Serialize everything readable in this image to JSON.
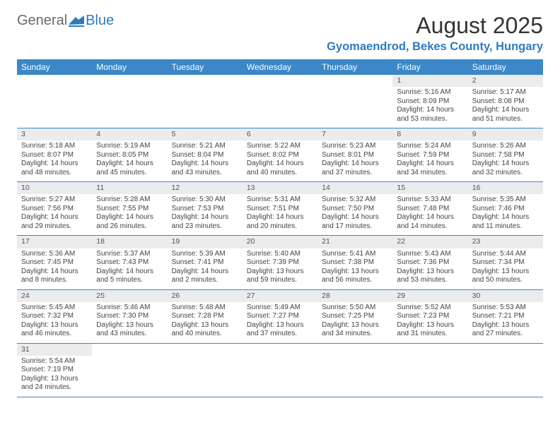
{
  "logo": {
    "text_a": "General",
    "text_b": "Blue"
  },
  "title": "August 2025",
  "location": "Gyomaendrod, Bekes County, Hungary",
  "colors": {
    "header_bg": "#3b87c8",
    "header_text": "#ffffff",
    "daynum_bg": "#ececec",
    "rule": "#3b87c8",
    "logo_blue": "#2f7bbf",
    "logo_gray": "#6a6a6a",
    "body_text": "#444444"
  },
  "typography": {
    "title_fontsize": 32,
    "location_fontsize": 16.5,
    "dayhead_fontsize": 12,
    "cell_fontsize": 10
  },
  "day_headers": [
    "Sunday",
    "Monday",
    "Tuesday",
    "Wednesday",
    "Thursday",
    "Friday",
    "Saturday"
  ],
  "weeks": [
    [
      null,
      null,
      null,
      null,
      null,
      {
        "n": "1",
        "sr": "Sunrise: 5:16 AM",
        "ss": "Sunset: 8:09 PM",
        "dl1": "Daylight: 14 hours",
        "dl2": "and 53 minutes."
      },
      {
        "n": "2",
        "sr": "Sunrise: 5:17 AM",
        "ss": "Sunset: 8:08 PM",
        "dl1": "Daylight: 14 hours",
        "dl2": "and 51 minutes."
      }
    ],
    [
      {
        "n": "3",
        "sr": "Sunrise: 5:18 AM",
        "ss": "Sunset: 8:07 PM",
        "dl1": "Daylight: 14 hours",
        "dl2": "and 48 minutes."
      },
      {
        "n": "4",
        "sr": "Sunrise: 5:19 AM",
        "ss": "Sunset: 8:05 PM",
        "dl1": "Daylight: 14 hours",
        "dl2": "and 45 minutes."
      },
      {
        "n": "5",
        "sr": "Sunrise: 5:21 AM",
        "ss": "Sunset: 8:04 PM",
        "dl1": "Daylight: 14 hours",
        "dl2": "and 43 minutes."
      },
      {
        "n": "6",
        "sr": "Sunrise: 5:22 AM",
        "ss": "Sunset: 8:02 PM",
        "dl1": "Daylight: 14 hours",
        "dl2": "and 40 minutes."
      },
      {
        "n": "7",
        "sr": "Sunrise: 5:23 AM",
        "ss": "Sunset: 8:01 PM",
        "dl1": "Daylight: 14 hours",
        "dl2": "and 37 minutes."
      },
      {
        "n": "8",
        "sr": "Sunrise: 5:24 AM",
        "ss": "Sunset: 7:59 PM",
        "dl1": "Daylight: 14 hours",
        "dl2": "and 34 minutes."
      },
      {
        "n": "9",
        "sr": "Sunrise: 5:26 AM",
        "ss": "Sunset: 7:58 PM",
        "dl1": "Daylight: 14 hours",
        "dl2": "and 32 minutes."
      }
    ],
    [
      {
        "n": "10",
        "sr": "Sunrise: 5:27 AM",
        "ss": "Sunset: 7:56 PM",
        "dl1": "Daylight: 14 hours",
        "dl2": "and 29 minutes."
      },
      {
        "n": "11",
        "sr": "Sunrise: 5:28 AM",
        "ss": "Sunset: 7:55 PM",
        "dl1": "Daylight: 14 hours",
        "dl2": "and 26 minutes."
      },
      {
        "n": "12",
        "sr": "Sunrise: 5:30 AM",
        "ss": "Sunset: 7:53 PM",
        "dl1": "Daylight: 14 hours",
        "dl2": "and 23 minutes."
      },
      {
        "n": "13",
        "sr": "Sunrise: 5:31 AM",
        "ss": "Sunset: 7:51 PM",
        "dl1": "Daylight: 14 hours",
        "dl2": "and 20 minutes."
      },
      {
        "n": "14",
        "sr": "Sunrise: 5:32 AM",
        "ss": "Sunset: 7:50 PM",
        "dl1": "Daylight: 14 hours",
        "dl2": "and 17 minutes."
      },
      {
        "n": "15",
        "sr": "Sunrise: 5:33 AM",
        "ss": "Sunset: 7:48 PM",
        "dl1": "Daylight: 14 hours",
        "dl2": "and 14 minutes."
      },
      {
        "n": "16",
        "sr": "Sunrise: 5:35 AM",
        "ss": "Sunset: 7:46 PM",
        "dl1": "Daylight: 14 hours",
        "dl2": "and 11 minutes."
      }
    ],
    [
      {
        "n": "17",
        "sr": "Sunrise: 5:36 AM",
        "ss": "Sunset: 7:45 PM",
        "dl1": "Daylight: 14 hours",
        "dl2": "and 8 minutes."
      },
      {
        "n": "18",
        "sr": "Sunrise: 5:37 AM",
        "ss": "Sunset: 7:43 PM",
        "dl1": "Daylight: 14 hours",
        "dl2": "and 5 minutes."
      },
      {
        "n": "19",
        "sr": "Sunrise: 5:39 AM",
        "ss": "Sunset: 7:41 PM",
        "dl1": "Daylight: 14 hours",
        "dl2": "and 2 minutes."
      },
      {
        "n": "20",
        "sr": "Sunrise: 5:40 AM",
        "ss": "Sunset: 7:39 PM",
        "dl1": "Daylight: 13 hours",
        "dl2": "and 59 minutes."
      },
      {
        "n": "21",
        "sr": "Sunrise: 5:41 AM",
        "ss": "Sunset: 7:38 PM",
        "dl1": "Daylight: 13 hours",
        "dl2": "and 56 minutes."
      },
      {
        "n": "22",
        "sr": "Sunrise: 5:43 AM",
        "ss": "Sunset: 7:36 PM",
        "dl1": "Daylight: 13 hours",
        "dl2": "and 53 minutes."
      },
      {
        "n": "23",
        "sr": "Sunrise: 5:44 AM",
        "ss": "Sunset: 7:34 PM",
        "dl1": "Daylight: 13 hours",
        "dl2": "and 50 minutes."
      }
    ],
    [
      {
        "n": "24",
        "sr": "Sunrise: 5:45 AM",
        "ss": "Sunset: 7:32 PM",
        "dl1": "Daylight: 13 hours",
        "dl2": "and 46 minutes."
      },
      {
        "n": "25",
        "sr": "Sunrise: 5:46 AM",
        "ss": "Sunset: 7:30 PM",
        "dl1": "Daylight: 13 hours",
        "dl2": "and 43 minutes."
      },
      {
        "n": "26",
        "sr": "Sunrise: 5:48 AM",
        "ss": "Sunset: 7:28 PM",
        "dl1": "Daylight: 13 hours",
        "dl2": "and 40 minutes."
      },
      {
        "n": "27",
        "sr": "Sunrise: 5:49 AM",
        "ss": "Sunset: 7:27 PM",
        "dl1": "Daylight: 13 hours",
        "dl2": "and 37 minutes."
      },
      {
        "n": "28",
        "sr": "Sunrise: 5:50 AM",
        "ss": "Sunset: 7:25 PM",
        "dl1": "Daylight: 13 hours",
        "dl2": "and 34 minutes."
      },
      {
        "n": "29",
        "sr": "Sunrise: 5:52 AM",
        "ss": "Sunset: 7:23 PM",
        "dl1": "Daylight: 13 hours",
        "dl2": "and 31 minutes."
      },
      {
        "n": "30",
        "sr": "Sunrise: 5:53 AM",
        "ss": "Sunset: 7:21 PM",
        "dl1": "Daylight: 13 hours",
        "dl2": "and 27 minutes."
      }
    ],
    [
      {
        "n": "31",
        "sr": "Sunrise: 5:54 AM",
        "ss": "Sunset: 7:19 PM",
        "dl1": "Daylight: 13 hours",
        "dl2": "and 24 minutes."
      },
      null,
      null,
      null,
      null,
      null,
      null
    ]
  ]
}
